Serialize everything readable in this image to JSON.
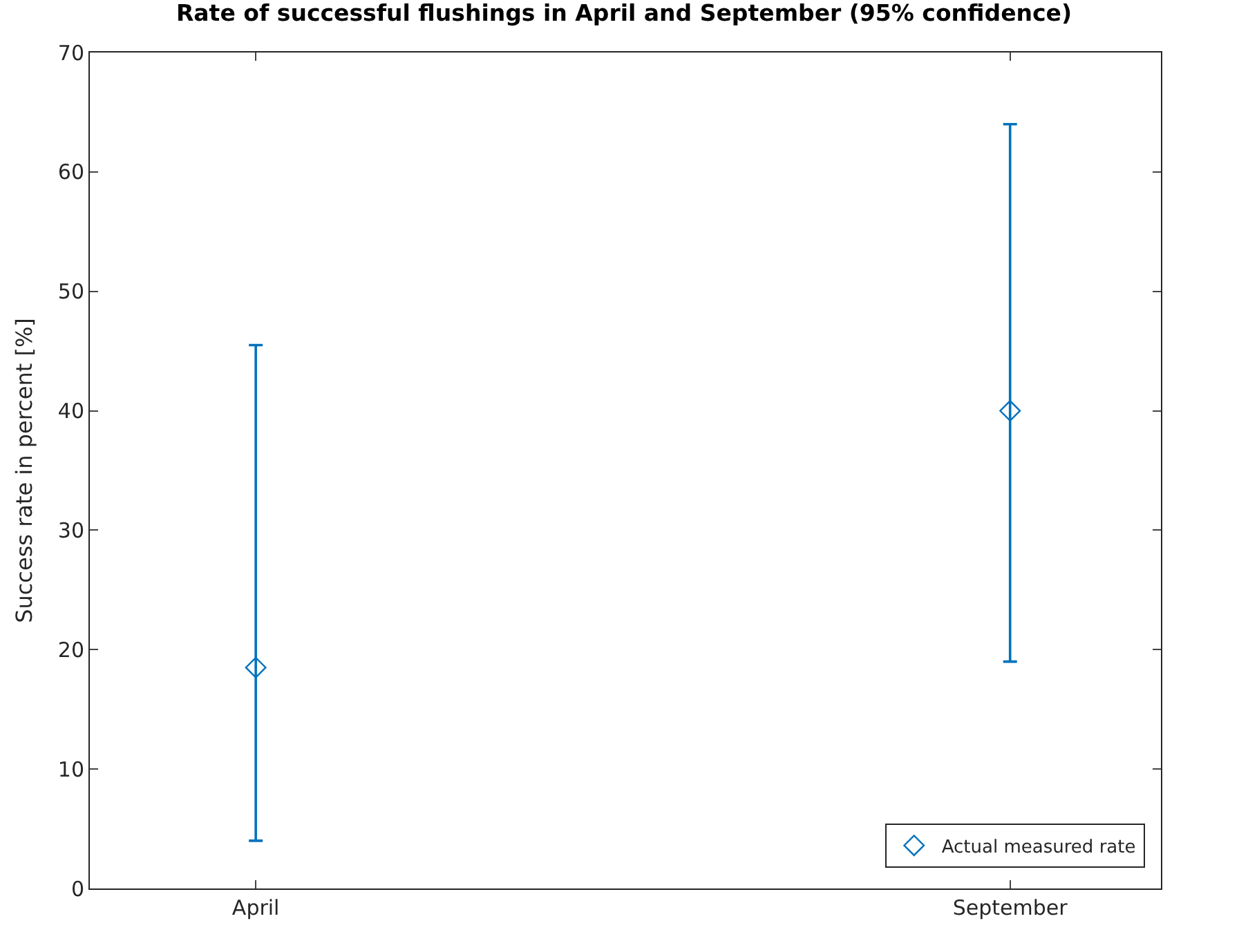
{
  "chart_data": {
    "type": "scatter",
    "title": "Rate of successful flushings in April and September (95% confidence)",
    "ylabel": "Success rate in percent [%]",
    "categories": [
      "April",
      "September"
    ],
    "series": [
      {
        "name": "Actual measured rate",
        "color": "#0072bd",
        "values": [
          18.5,
          40
        ],
        "errors": [
          [
            4,
            45.5
          ],
          [
            19,
            64
          ]
        ]
      }
    ],
    "ylim": [
      0,
      70
    ],
    "yticks": [
      0,
      10,
      20,
      30,
      40,
      50,
      60,
      70
    ],
    "marker": "diamond",
    "legend": "bottom right",
    "grid": false
  }
}
